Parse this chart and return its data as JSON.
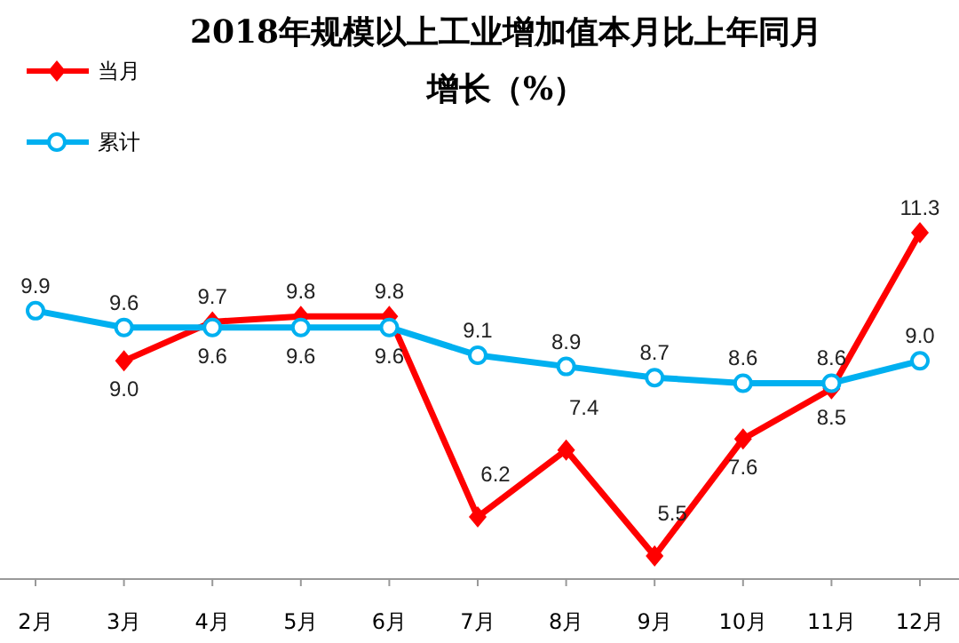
{
  "chart_data": {
    "type": "line",
    "title": "2018年规模以上工业增加值本月比上年同月增长（%）",
    "categories": [
      "2月",
      "3月",
      "4月",
      "5月",
      "6月",
      "7月",
      "8月",
      "9月",
      "10月",
      "11月",
      "12月"
    ],
    "series": [
      {
        "name": "当月",
        "color": "#ff0000",
        "marker": "diamond",
        "values": [
          null,
          9.0,
          9.7,
          9.8,
          9.8,
          6.2,
          7.4,
          5.5,
          7.6,
          8.5,
          11.3
        ],
        "value_labels": [
          null,
          "9.0",
          "9.7",
          "9.8",
          "9.8",
          "6.2",
          "7.4",
          "5.5",
          "7.6",
          "8.5",
          "11.3"
        ]
      },
      {
        "name": "累计",
        "color": "#00b0f0",
        "marker": "circle",
        "values": [
          9.9,
          9.6,
          9.6,
          9.6,
          9.6,
          9.1,
          8.9,
          8.7,
          8.6,
          8.6,
          9.0
        ],
        "value_labels": [
          "9.9",
          "9.6",
          "9.6",
          "9.6",
          "9.6",
          "9.1",
          "8.9",
          "8.7",
          "8.6",
          "8.6",
          "9.0"
        ]
      }
    ],
    "legend": "top left"
  }
}
